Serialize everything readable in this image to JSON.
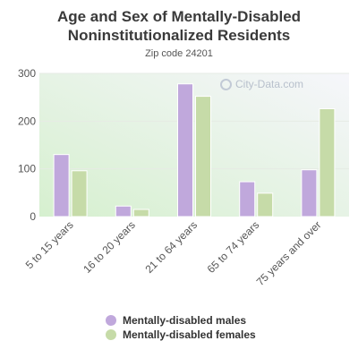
{
  "chart_data": {
    "type": "bar",
    "title": "Age and Sex of Mentally-Disabled Noninstitutionalized Residents",
    "subtitle": "Zip code 24201",
    "categories": [
      "5 to 15 years",
      "16 to 20 years",
      "21 to 64 years",
      "65 to 74 years",
      "75 years and over"
    ],
    "series": [
      {
        "name": "Mentally-disabled males",
        "color": "#c0a8dc",
        "values": [
          130,
          22,
          278,
          73,
          98
        ]
      },
      {
        "name": "Mentally-disabled females",
        "color": "#c6dba8",
        "values": [
          96,
          15,
          252,
          49,
          226
        ]
      }
    ],
    "yticks": [
      0,
      100,
      200,
      300
    ],
    "ylim": [
      0,
      300
    ],
    "legend_position": "bottom",
    "grid": true
  },
  "watermark": "City-Data.com"
}
